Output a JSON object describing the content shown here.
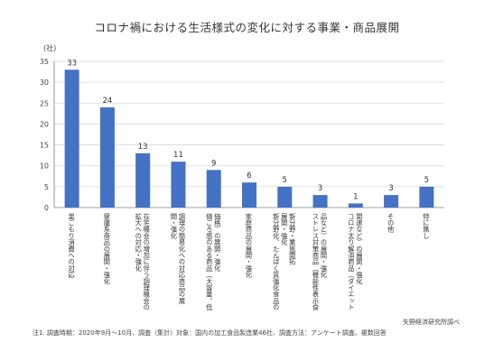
{
  "title": "コロナ禍における生活様式の変化に対する事業・商品展開",
  "source": "矢野経済研究所調べ",
  "note": "注1. 調査時期：2020年9月～10月、調査（集計）対象：国内の加工食品製造業46社、調査方法：アンケート調査、複数回答",
  "colors": {
    "bar": "#4472c4",
    "grid": "#d9d9d9",
    "axis": "#808080"
  },
  "chart_data": {
    "type": "bar",
    "ylabel": "(社)",
    "ylim": [
      0,
      35
    ],
    "yticks": [
      "0",
      "5",
      "10",
      "15",
      "20",
      "25",
      "30",
      "35"
    ],
    "grid": true,
    "categories": [
      [
        "巣ごもり消費への対応"
      ],
      [
        "健康系商品の展開・強化"
      ],
      [
        "在宅機会の増加に伴う調理機会の",
        "拡大への対応・強化"
      ],
      [
        "調理の簡易化への対応商品の展",
        "開・強化"
      ],
      [
        "価格）の展開・強化",
        "値ごろ感のある商品（大容量、低"
      ],
      [
        "家庭商品の展開・強化"
      ],
      [
        "新分野・業態開拓",
        "展開・強化",
        "新分野化、たんぱく質強化食品の"
      ],
      [
        "品など）の展開・強化",
        "ストレス対策商品（機能性表示食"
      ],
      [
        "関連など）の展開・強化",
        "コロナ太り解消商品（ダイエット"
      ],
      [
        "その他"
      ],
      [
        "特に無し"
      ]
    ],
    "values": [
      33,
      24,
      13,
      11,
      9,
      6,
      5,
      3,
      1,
      3,
      5
    ],
    "data_labels": [
      "33",
      "24",
      "13",
      "11",
      "9",
      "6",
      "5",
      "3",
      "1",
      "3",
      "5"
    ]
  }
}
